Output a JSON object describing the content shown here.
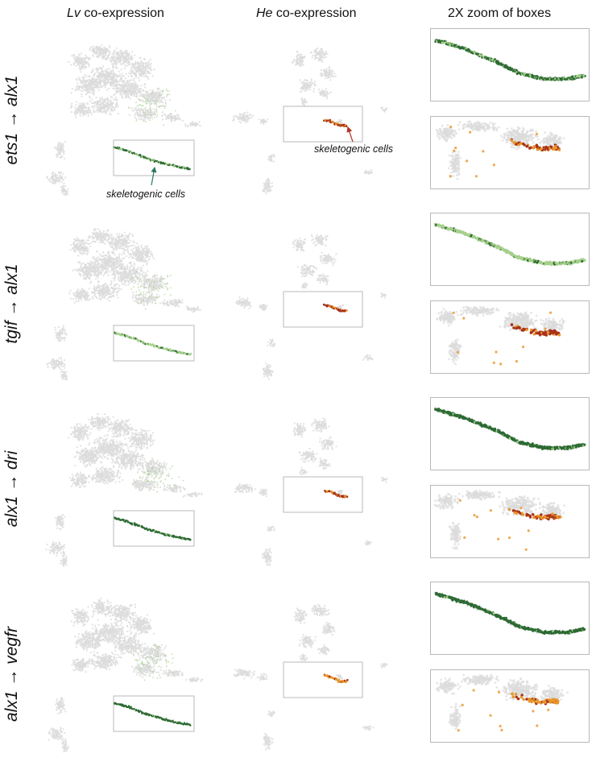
{
  "headers": {
    "lv_species": "Lv",
    "lv_suffix": " co-expression",
    "he_species": "He",
    "he_suffix": " co-expression",
    "zoom": "2X zoom of boxes"
  },
  "rows": [
    {
      "source": "ets1",
      "arrow": " → ",
      "target": "alx1",
      "lv_fraction": 0.7,
      "he_fraction": 0.5
    },
    {
      "source": "tgif",
      "arrow": " → ",
      "target": "alx1",
      "lv_fraction": 0.2,
      "he_fraction": 0.75
    },
    {
      "source": "alx1",
      "arrow": " → ",
      "target": "dri",
      "lv_fraction": 0.9,
      "he_fraction": 0.55
    },
    {
      "source": "alx1",
      "arrow": " → ",
      "target": "vegfr",
      "lv_fraction": 0.95,
      "he_fraction": 0.35
    }
  ],
  "annotations": {
    "lv_label": "skeletogenic cells",
    "he_label": "skeletogenic cells"
  },
  "colors": {
    "background_cells": "#dcdcdc",
    "lv_dark_green": "#2e6b34",
    "lv_light_green": "#a6d18c",
    "he_orange": "#e8952a",
    "he_dark_red": "#a8331a",
    "box_border": "#b9b9b9",
    "lv_arrow": "#2a7a5a",
    "he_arrow": "#b0342a"
  }
}
